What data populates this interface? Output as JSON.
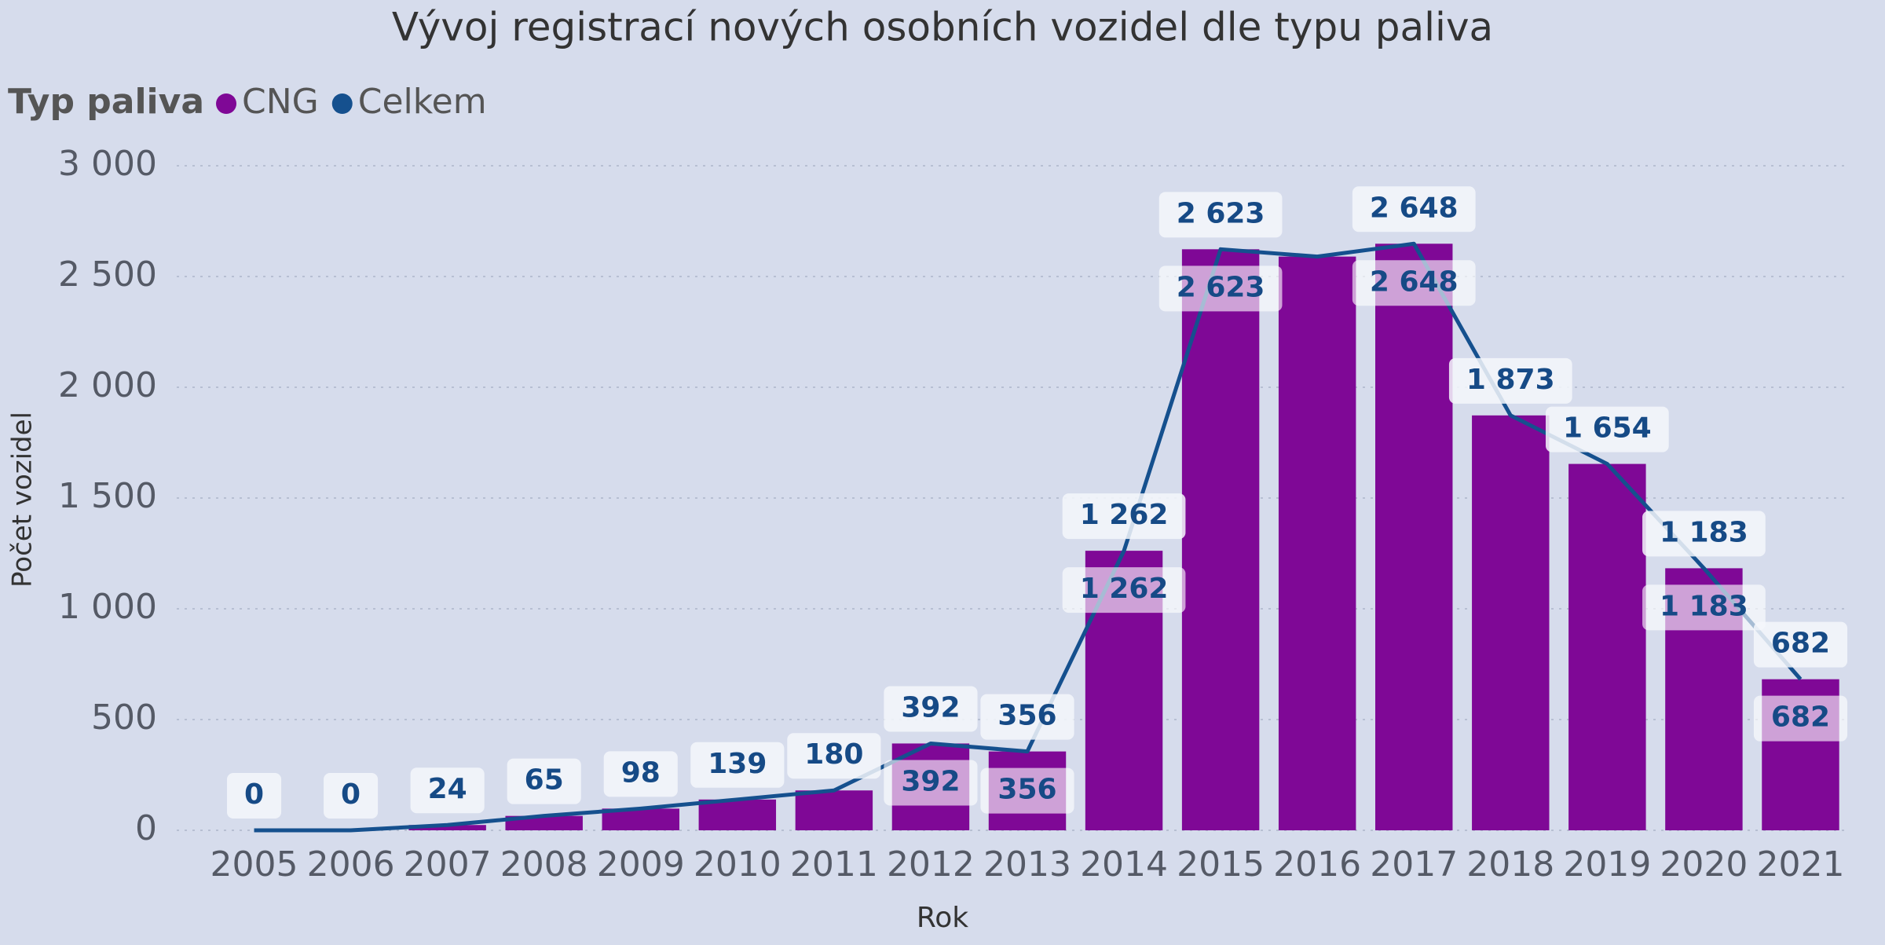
{
  "chart_data": {
    "type": "combo",
    "title": "Vývoj registrací nových osobních vozidel dle typu paliva",
    "legend_title": "Typ paliva",
    "x_label": "Rok",
    "y_label": "Počet vozidel",
    "categories": [
      "2005",
      "2006",
      "2007",
      "2008",
      "2009",
      "2010",
      "2011",
      "2012",
      "2013",
      "2014",
      "2015",
      "2016",
      "2017",
      "2018",
      "2019",
      "2020",
      "2021"
    ],
    "series": [
      {
        "name": "CNG",
        "type": "bar",
        "color": "#7f0896",
        "values": [
          0,
          0,
          24,
          65,
          98,
          139,
          180,
          392,
          356,
          1262,
          2623,
          2590,
          2648,
          1873,
          1654,
          1183,
          682
        ],
        "value_labels": [
          null,
          null,
          null,
          null,
          null,
          null,
          null,
          "392",
          "356",
          "1 262",
          "2 623",
          null,
          "2 648",
          null,
          null,
          "1 183",
          "682"
        ]
      },
      {
        "name": "Celkem",
        "type": "line",
        "color": "#15508e",
        "values": [
          0,
          0,
          24,
          65,
          98,
          139,
          180,
          392,
          356,
          1262,
          2623,
          2590,
          2648,
          1873,
          1654,
          1183,
          682
        ],
        "value_labels": [
          "0",
          "0",
          "24",
          "65",
          "98",
          "139",
          "180",
          "392",
          "356",
          "1 262",
          "2 623",
          null,
          "2 648",
          "1 873",
          "1 654",
          "1 183",
          "682"
        ]
      }
    ],
    "ylim": [
      0,
      3000
    ],
    "yticks": [
      0,
      500,
      {
        "value": 1000,
        "label": "1 000"
      },
      {
        "value": 1500,
        "label": "1 500"
      },
      {
        "value": 2000,
        "label": "2 000"
      },
      {
        "value": 2500,
        "label": "2 500"
      },
      {
        "value": 3000,
        "label": "3 000"
      }
    ],
    "grid": true
  }
}
